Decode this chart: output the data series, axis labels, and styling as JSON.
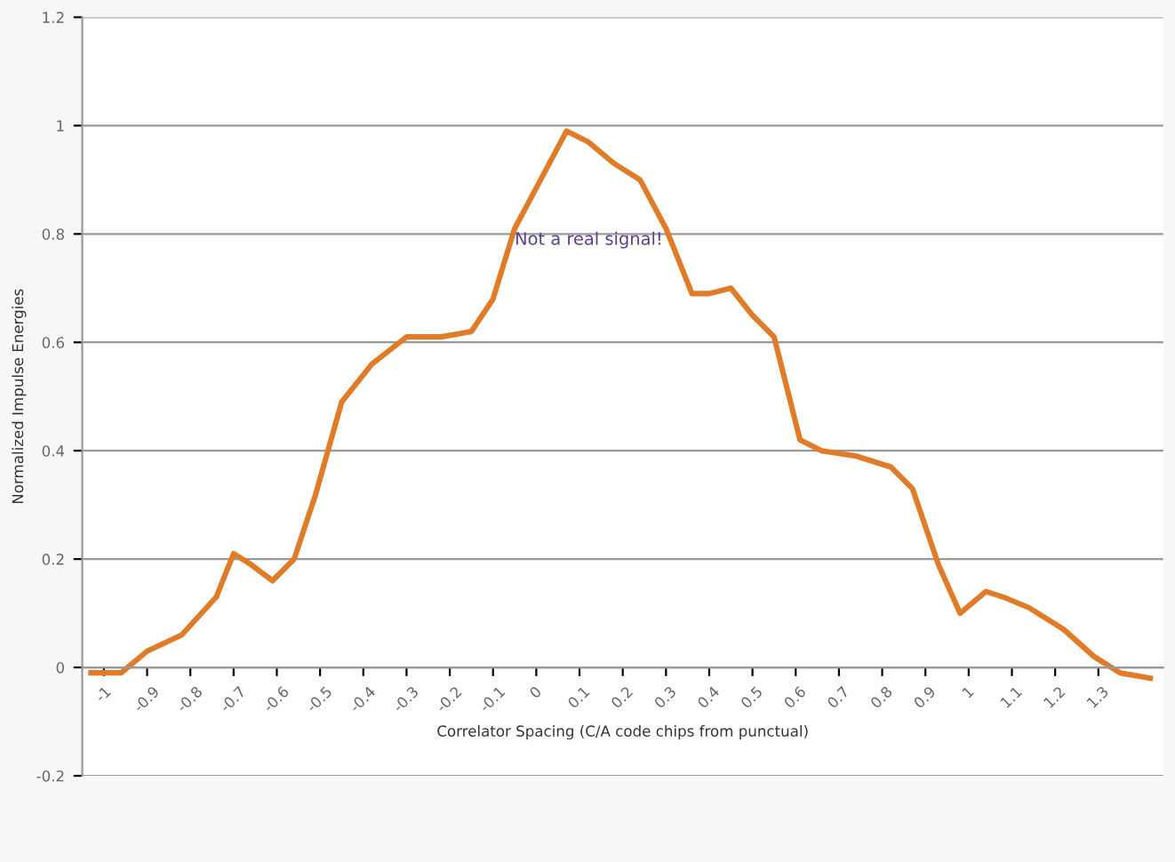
{
  "chart_data": {
    "type": "line",
    "xlabel": "Correlator Spacing (C/A code chips from punctual)",
    "ylabel": "Normalized Impulse Energies",
    "annotations": [
      "Not a real signal!"
    ],
    "series": [
      {
        "color": "#e07b28",
        "x": [
          -1.03,
          -0.96,
          -0.9,
          -0.82,
          -0.74,
          -0.7,
          -0.66,
          -0.61,
          -0.56,
          -0.51,
          -0.45,
          -0.38,
          -0.3,
          -0.22,
          -0.15,
          -0.1,
          -0.05,
          0.01,
          0.07,
          0.12,
          0.18,
          0.24,
          0.3,
          0.36,
          0.4,
          0.45,
          0.5,
          0.55,
          0.61,
          0.66,
          0.74,
          0.82,
          0.87,
          0.93,
          0.98,
          1.04,
          1.08,
          1.14,
          1.22,
          1.29,
          1.35,
          1.42
        ],
        "values": [
          -0.01,
          -0.01,
          0.03,
          0.06,
          0.13,
          0.21,
          0.19,
          0.16,
          0.2,
          0.32,
          0.49,
          0.56,
          0.61,
          0.61,
          0.62,
          0.68,
          0.81,
          0.9,
          0.99,
          0.97,
          0.93,
          0.9,
          0.81,
          0.69,
          0.69,
          0.7,
          0.65,
          0.61,
          0.42,
          0.4,
          0.39,
          0.37,
          0.33,
          0.19,
          0.1,
          0.14,
          0.13,
          0.11,
          0.07,
          0.02,
          -0.01,
          -0.02
        ]
      }
    ],
    "xlim": [
      -1.05,
      1.45
    ],
    "xticks": [
      {
        "value": -1,
        "label": "-1"
      },
      {
        "value": -0.9,
        "label": "-0.9"
      },
      {
        "value": -0.8,
        "label": "-0.8"
      },
      {
        "value": -0.7,
        "label": "-0.7"
      },
      {
        "value": -0.6,
        "label": "-0.6"
      },
      {
        "value": -0.5,
        "label": "-0.5"
      },
      {
        "value": -0.4,
        "label": "-0.4"
      },
      {
        "value": -0.3,
        "label": "-0.3"
      },
      {
        "value": -0.2,
        "label": "-0.2"
      },
      {
        "value": -0.1,
        "label": "-0.1"
      },
      0,
      0.1,
      0.2,
      0.3,
      0.4,
      0.5,
      0.6,
      0.7,
      0.8,
      0.9,
      1,
      1.1,
      1.2,
      1.3
    ],
    "ylim": [
      -0.2,
      1.2
    ],
    "yticks": [
      -0.2,
      0,
      0.2,
      0.4,
      0.6,
      0.8,
      1,
      1.2
    ],
    "grid": "y",
    "legend": false,
    "marker": "none",
    "line_style": "solid"
  }
}
